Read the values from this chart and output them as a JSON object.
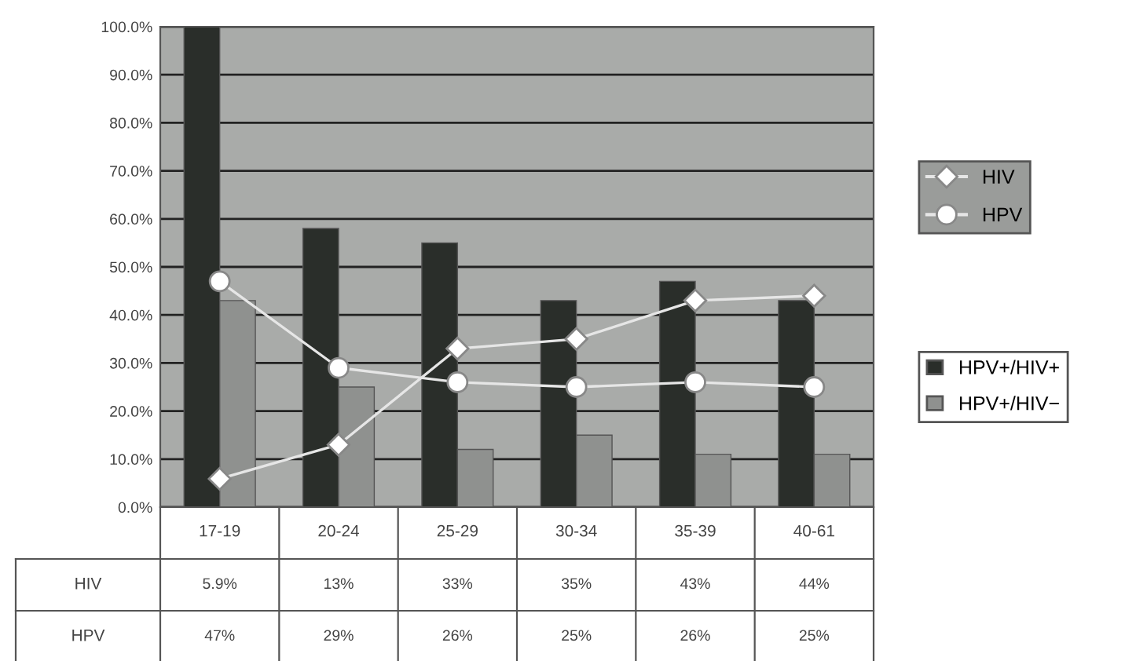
{
  "chart_data": {
    "type": "bar",
    "categories": [
      "17-19",
      "20-24",
      "25-29",
      "30-34",
      "35-39",
      "40-61"
    ],
    "series": [
      {
        "name": "HPV+/HIV+",
        "color": "#2a2e2a",
        "values": [
          100,
          58,
          55,
          43,
          47,
          43
        ]
      },
      {
        "name": "HPV+/HIV−",
        "color": "#8f918f",
        "values": [
          43,
          25,
          12,
          15,
          11,
          11
        ]
      },
      {
        "name": "HIV",
        "type": "line",
        "marker": "diamond",
        "color": "#e6e6e6",
        "values": [
          5.9,
          13,
          33,
          35,
          43,
          44
        ],
        "value_labels": [
          "5.9%",
          "13%",
          "33%",
          "35%",
          "43%",
          "44%"
        ]
      },
      {
        "name": "HPV",
        "type": "line",
        "marker": "circle",
        "color": "#e6e6e6",
        "values": [
          47,
          29,
          26,
          25,
          26,
          25
        ],
        "value_labels": [
          "47%",
          "29%",
          "26%",
          "25%",
          "26%",
          "25%"
        ]
      }
    ],
    "ylim": [
      0,
      100
    ],
    "yticks": [
      {
        "value": 0,
        "label": "0.0%"
      },
      {
        "value": 10,
        "label": "10.0%"
      },
      {
        "value": 20,
        "label": "20.0%"
      },
      {
        "value": 30,
        "label": "30.0%"
      },
      {
        "value": 40,
        "label": "40.0%"
      },
      {
        "value": 50,
        "label": "50.0%"
      },
      {
        "value": 60,
        "label": "60.0%"
      },
      {
        "value": 70,
        "label": "70.0%"
      },
      {
        "value": 80,
        "label": "80.0%"
      },
      {
        "value": 90,
        "label": "90.0%"
      },
      {
        "value": 100,
        "label": "100.0%"
      }
    ],
    "grid": "y",
    "legend": "right"
  }
}
